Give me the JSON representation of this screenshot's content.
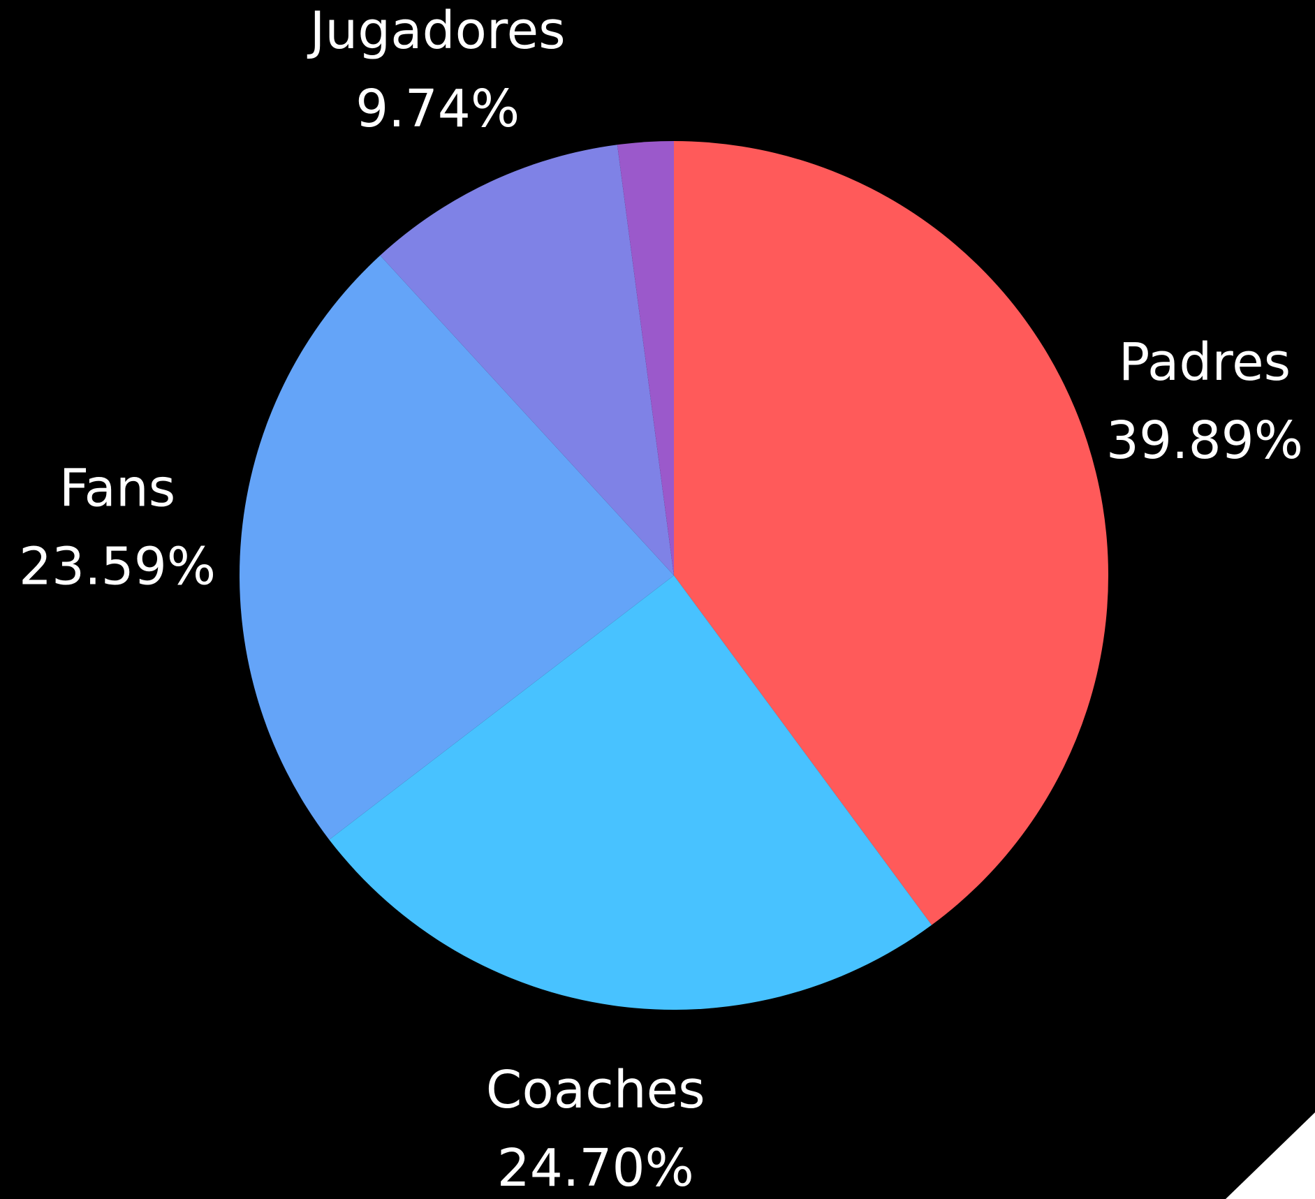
{
  "chart_data": {
    "type": "pie",
    "title": "",
    "start_angle_deg": 0,
    "direction": "clockwise",
    "slices": [
      {
        "label": "Padres",
        "value": 39.89,
        "value_label": "39.89%",
        "color": "#FF5A5A"
      },
      {
        "label": "Coaches",
        "value": 24.7,
        "value_label": "24.70%",
        "color": "#48C2FF"
      },
      {
        "label": "Fans",
        "value": 23.59,
        "value_label": "23.59%",
        "color": "#64A4F8"
      },
      {
        "label": "Jugadores",
        "value": 9.74,
        "value_label": "9.74%",
        "color": "#7F82E6"
      },
      {
        "label": "",
        "value": 2.08,
        "value_label": "",
        "color": "#9B59CB"
      }
    ]
  }
}
